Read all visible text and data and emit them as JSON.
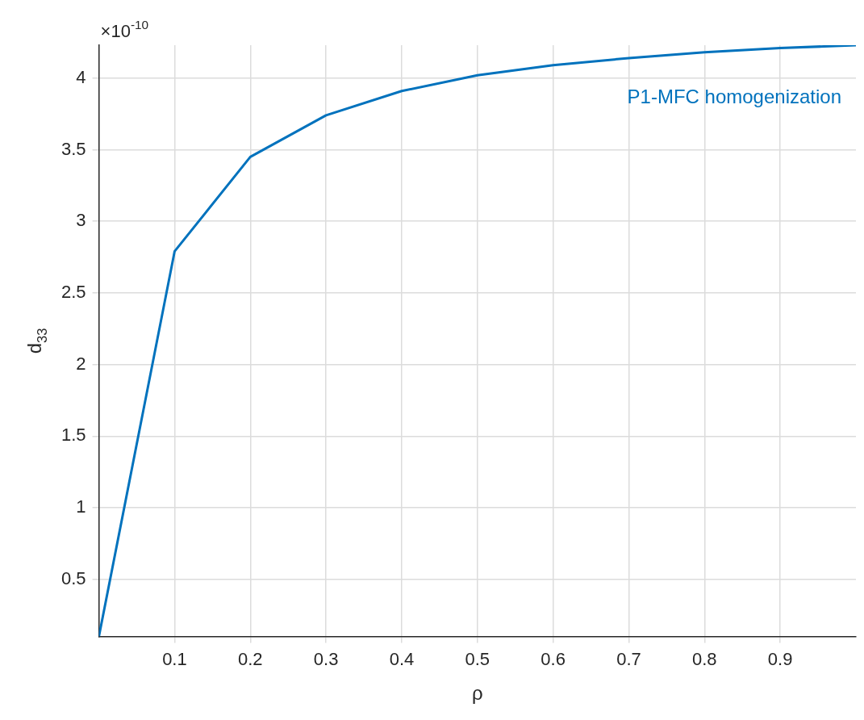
{
  "chart_data": {
    "type": "line",
    "xlabel": "ρ",
    "ylabel": "d$_{33}$",
    "annotations": [
      "×10$^{-10}$"
    ],
    "x": [
      0,
      0.1,
      0.2,
      0.3,
      0.4,
      0.5,
      0.6,
      0.7,
      0.8,
      0.9,
      1.0
    ],
    "series": [
      {
        "name": "P1-MFC homogenization",
        "color": "#0072bd",
        "values": [
          0.1,
          2.79,
          3.45,
          3.74,
          3.91,
          4.02,
          4.09,
          4.14,
          4.18,
          4.21,
          4.23
        ]
      }
    ],
    "xlim": [
      0,
      1
    ],
    "ylim": [
      0.1,
      4.23
    ],
    "xticks": [
      0.1,
      0.2,
      0.3,
      0.4,
      0.5,
      0.6,
      0.7,
      0.8,
      0.9
    ],
    "yticks": [
      0.5,
      1,
      1.5,
      2,
      2.5,
      3,
      3.5,
      4
    ],
    "grid": true,
    "legend": false,
    "marker": "none",
    "line_style": "solid"
  }
}
